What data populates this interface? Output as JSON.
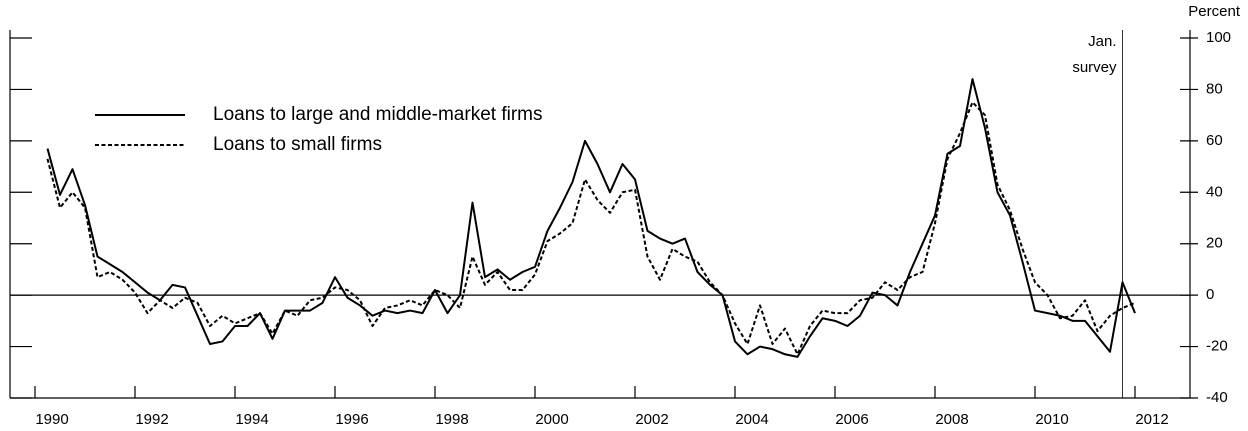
{
  "chart_data": {
    "type": "line",
    "y_axis_unit": "Percent",
    "x": [
      1990.25,
      1990.5,
      1990.75,
      1991,
      1991.25,
      1991.5,
      1991.75,
      1992,
      1992.25,
      1992.5,
      1992.75,
      1993,
      1993.25,
      1993.5,
      1993.75,
      1994,
      1994.25,
      1994.5,
      1994.75,
      1995,
      1995.25,
      1995.5,
      1995.75,
      1996,
      1996.25,
      1996.5,
      1996.75,
      1997,
      1997.25,
      1997.5,
      1997.75,
      1998,
      1998.25,
      1998.5,
      1998.75,
      1999,
      1999.25,
      1999.5,
      1999.75,
      2000,
      2000.25,
      2000.5,
      2000.75,
      2001,
      2001.25,
      2001.5,
      2001.75,
      2002,
      2002.25,
      2002.5,
      2002.75,
      2003,
      2003.25,
      2003.5,
      2003.75,
      2004,
      2004.25,
      2004.5,
      2004.75,
      2005,
      2005.25,
      2005.5,
      2005.75,
      2006,
      2006.25,
      2006.5,
      2006.75,
      2007,
      2007.25,
      2007.5,
      2007.75,
      2008,
      2008.25,
      2008.5,
      2008.75,
      2009,
      2009.25,
      2009.5,
      2009.75,
      2010,
      2010.25,
      2010.5,
      2010.75,
      2011,
      2011.25,
      2011.5,
      2011.75,
      2012
    ],
    "series": [
      {
        "name": "Loans to large and middle-market firms",
        "color": "#000000",
        "dash": "solid",
        "values": [
          57,
          39,
          49,
          35,
          15,
          12,
          9,
          5,
          1,
          -2,
          4,
          3,
          -8,
          -19,
          -18,
          -12,
          -12,
          -7,
          -17,
          -6,
          -6,
          -6,
          -3,
          7,
          -1,
          -4,
          -8,
          -6,
          -7,
          -6,
          -7,
          2,
          -7,
          0,
          36,
          7,
          10,
          6,
          9,
          11,
          25,
          34,
          44,
          60,
          51,
          40,
          51,
          45,
          25,
          22,
          20,
          22,
          9,
          4,
          0,
          -18,
          -23,
          -20,
          -21,
          -23,
          -24,
          -16,
          -9,
          -10,
          -12,
          -8,
          1,
          0,
          -4,
          9,
          20,
          31,
          55,
          58,
          84,
          65,
          40,
          31,
          13,
          -6,
          -7,
          -8,
          -10,
          -10,
          -16,
          -22,
          5,
          -7
        ]
      },
      {
        "name": "Loans to small firms",
        "color": "#000000",
        "dash": "dotted",
        "values": [
          53,
          34,
          40,
          34,
          7,
          9,
          6,
          1,
          -7,
          -2,
          -5,
          -1,
          -3,
          -12,
          -8,
          -11,
          -9,
          -7,
          -15,
          -6,
          -8,
          -2,
          -1,
          3,
          2,
          -2,
          -12,
          -5,
          -4,
          -2,
          -4,
          2,
          0,
          -5,
          15,
          4,
          9,
          2,
          2,
          8,
          21,
          24,
          28,
          45,
          37,
          32,
          40,
          41,
          15,
          6,
          18,
          15,
          13,
          5,
          0,
          -11,
          -19,
          -4,
          -19,
          -13,
          -23,
          -12,
          -6,
          -7,
          -7,
          -2,
          -1,
          5,
          2,
          7,
          9,
          28,
          53,
          63,
          75,
          70,
          43,
          33,
          18,
          5,
          0,
          -9,
          -8,
          -2,
          -14,
          -8,
          -5,
          -3
        ]
      }
    ],
    "xlim": [
      1989.5,
      2013.1
    ],
    "xticks": [
      {
        "value": 1990,
        "label": "1990"
      },
      {
        "value": 1992,
        "label": "1992"
      },
      {
        "value": 1994,
        "label": "1994"
      },
      {
        "value": 1996,
        "label": "1996"
      },
      {
        "value": 1998,
        "label": "1998"
      },
      {
        "value": 2000,
        "label": "2000"
      },
      {
        "value": 2002,
        "label": "2002"
      },
      {
        "value": 2004,
        "label": "2004"
      },
      {
        "value": 2006,
        "label": "2006"
      },
      {
        "value": 2008,
        "label": "2008"
      },
      {
        "value": 2010,
        "label": "2010"
      },
      {
        "value": 2012,
        "label": "2012"
      }
    ],
    "ylim": [
      -40,
      100
    ],
    "yticks": [
      -40,
      -20,
      0,
      20,
      40,
      60,
      80,
      100
    ],
    "reference_line": 0,
    "annotation": {
      "x": 2011.75,
      "lines": [
        "Jan.",
        "survey"
      ]
    },
    "legend": "upper left",
    "grid": false
  }
}
